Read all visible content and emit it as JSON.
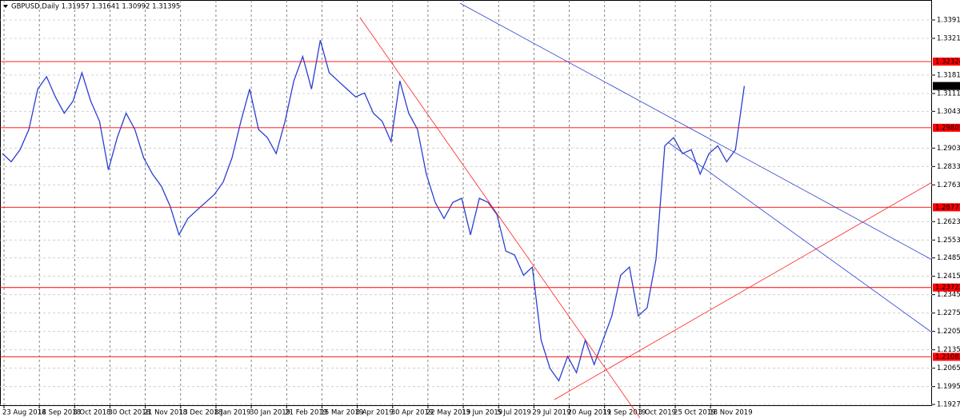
{
  "chart_data": {
    "type": "line",
    "title": "GBPUSD,Daily  1.31957 1.31641 1.30992 1.31395",
    "categories": [
      "23 Aug 2018",
      null,
      null,
      null,
      "14 Sep 2018",
      null,
      null,
      null,
      "8 Oct 2018",
      null,
      null,
      null,
      "30 Oct 2018",
      null,
      null,
      null,
      "21 Nov 2018",
      null,
      null,
      null,
      "13 Dec 2018",
      null,
      null,
      null,
      "8 Jan 2019",
      null,
      null,
      null,
      "30 Jan 2019",
      null,
      null,
      null,
      "21 Feb 2019",
      null,
      null,
      null,
      "15 Mar 2019",
      null,
      null,
      null,
      "8 Apr 2019",
      null,
      null,
      null,
      "30 Apr 2019",
      null,
      null,
      null,
      "22 May 2019",
      null,
      null,
      null,
      "13 Jun 2019",
      null,
      null,
      null,
      "5 Jul 2019",
      null,
      null,
      null,
      "29 Jul 2019",
      null,
      null,
      null,
      "20 Aug 2019",
      null,
      null,
      null,
      "11 Sep 2019",
      null,
      null,
      null,
      "3 Oct 2019",
      null,
      null,
      null,
      "25 Oct 2019",
      null,
      null,
      null,
      "18 Nov 2019",
      null,
      null,
      null,
      null
    ],
    "series": [
      {
        "name": "GBPUSD",
        "color": "#2a3fd0",
        "values": [
          1.2882,
          1.2851,
          1.2897,
          1.2974,
          1.3128,
          1.3175,
          1.3098,
          1.3036,
          1.3082,
          1.319,
          1.3082,
          1.3005,
          1.282,
          1.2943,
          1.3036,
          1.2974,
          1.2866,
          1.2804,
          1.2758,
          1.2681,
          1.2573,
          1.2635,
          1.2666,
          1.2696,
          1.2727,
          1.2774,
          1.2866,
          1.3005,
          1.3128,
          1.2974,
          1.2943,
          1.2882,
          1.3005,
          1.3159,
          1.3252,
          1.3128,
          1.3314,
          1.319,
          1.3159,
          1.3128,
          1.3098,
          1.3113,
          1.3036,
          1.3005,
          1.2928,
          1.3159,
          1.3036,
          1.2974,
          1.2804,
          1.2696,
          1.2635,
          1.2696,
          1.2712,
          1.2573,
          1.2712,
          1.2696,
          1.265,
          1.2511,
          1.2496,
          1.2419,
          1.245,
          1.2172,
          1.2064,
          1.2017,
          1.211,
          1.2048,
          1.2172,
          1.2079,
          1.2172,
          1.2264,
          1.2419,
          1.245,
          1.2264,
          1.2295,
          1.248,
          1.2912,
          1.2943,
          1.2882,
          1.2897,
          1.2804,
          1.2882,
          1.2912,
          1.2851,
          1.2897,
          1.31395
        ]
      }
    ],
    "ylim": [
      1.1921,
      1.3467
    ],
    "yticks": [
      {
        "value": 1.1927,
        "label": "1.19270"
      },
      {
        "value": 1.1995,
        "label": "1.19950"
      },
      {
        "value": 1.2065,
        "label": "1.20650"
      },
      {
        "value": 1.2135,
        "label": "1.21350"
      },
      {
        "value": 1.2205,
        "label": "1.22050"
      },
      {
        "value": 1.2275,
        "label": "1.22750"
      },
      {
        "value": 1.2345,
        "label": "1.23450"
      },
      {
        "value": 1.2415,
        "label": "1.24150"
      },
      {
        "value": 1.2485,
        "label": "1.24850"
      },
      {
        "value": 1.2553,
        "label": "1.25530"
      },
      {
        "value": 1.2623,
        "label": "1.26230"
      },
      {
        "value": 1.2763,
        "label": "1.27630"
      },
      {
        "value": 1.2833,
        "label": "1.28330"
      },
      {
        "value": 1.2903,
        "label": "1.29030"
      },
      {
        "value": 1.3043,
        "label": "1.30430"
      },
      {
        "value": 1.3111,
        "label": "1.31110"
      },
      {
        "value": 1.3181,
        "label": "1.31810"
      },
      {
        "value": 1.3321,
        "label": "1.33210"
      },
      {
        "value": 1.3391,
        "label": "1.33910"
      }
    ],
    "levels": [
      {
        "value": 1.32324,
        "color": "#ff0000"
      },
      {
        "value": 1.29805,
        "color": "#ff0000"
      },
      {
        "value": 1.26777,
        "color": "#ff0000"
      },
      {
        "value": 1.23722,
        "color": "#ff0000"
      },
      {
        "value": 1.21083,
        "color": "#ff0000"
      }
    ],
    "last_price": 1.31395,
    "grid": true
  }
}
